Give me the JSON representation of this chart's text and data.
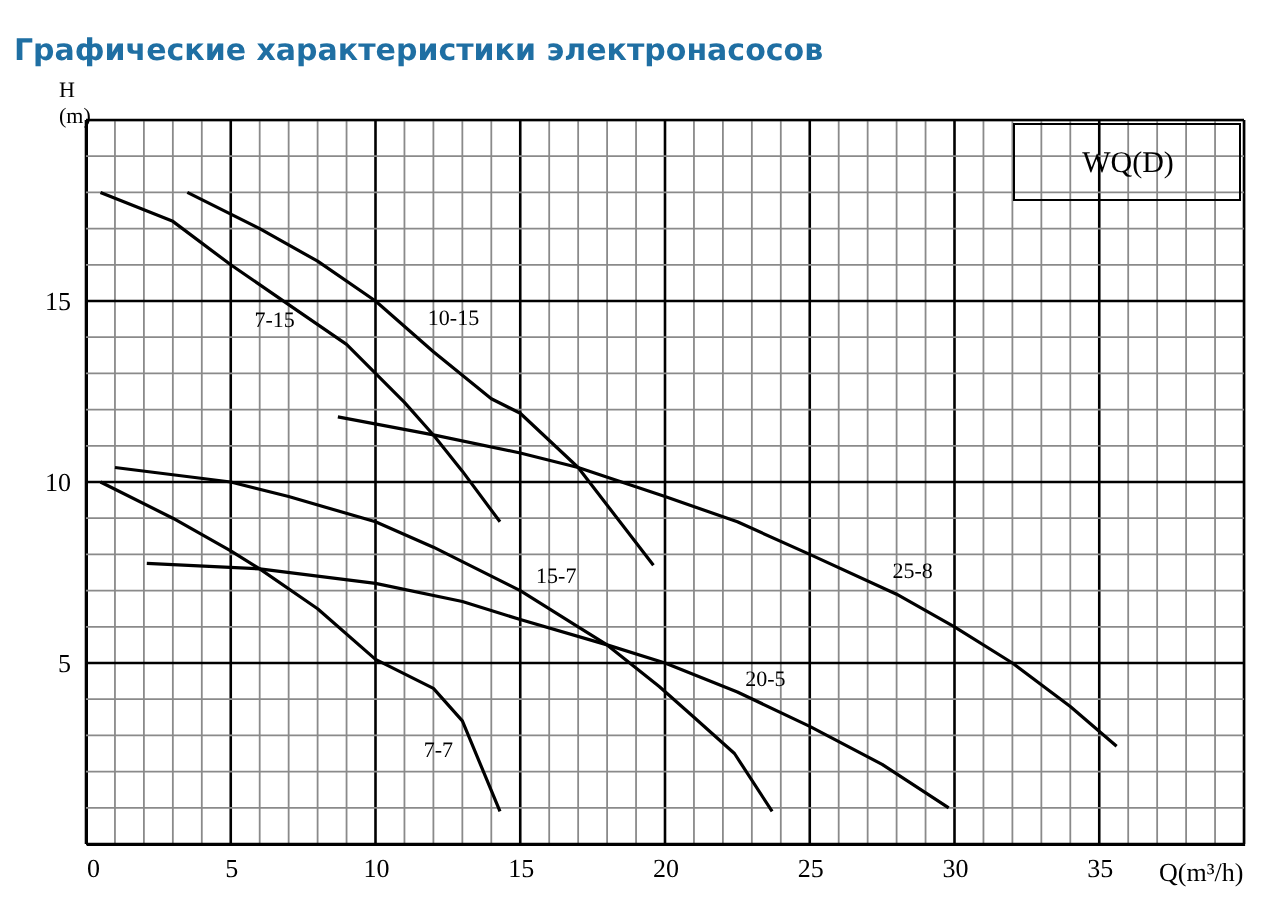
{
  "chart_data": {
    "type": "line",
    "title": "Графические характеристики электронасосов",
    "xlabel": "Q(m³/h)",
    "ylabel": "H\n(m)",
    "xlim": [
      0,
      40
    ],
    "ylim": [
      0,
      20
    ],
    "xticks": [
      0,
      {
        "value": 1,
        "label": null
      },
      {
        "value": 2,
        "label": null
      },
      {
        "value": 3,
        "label": null
      },
      {
        "value": 4,
        "label": null
      },
      5,
      {
        "value": 6,
        "label": null
      },
      {
        "value": 7,
        "label": null
      },
      {
        "value": 8,
        "label": null
      },
      {
        "value": 9,
        "label": null
      },
      10,
      {
        "value": 11,
        "label": null
      },
      {
        "value": 12,
        "label": null
      },
      {
        "value": 13,
        "label": null
      },
      {
        "value": 14,
        "label": null
      },
      15,
      {
        "value": 16,
        "label": null
      },
      {
        "value": 17,
        "label": null
      },
      {
        "value": 18,
        "label": null
      },
      {
        "value": 19,
        "label": null
      },
      20,
      {
        "value": 21,
        "label": null
      },
      {
        "value": 22,
        "label": null
      },
      {
        "value": 23,
        "label": null
      },
      {
        "value": 24,
        "label": null
      },
      25,
      {
        "value": 26,
        "label": null
      },
      {
        "value": 27,
        "label": null
      },
      {
        "value": 28,
        "label": null
      },
      {
        "value": 29,
        "label": null
      },
      30,
      {
        "value": 31,
        "label": null
      },
      {
        "value": 32,
        "label": null
      },
      {
        "value": 33,
        "label": null
      },
      {
        "value": 34,
        "label": null
      },
      35,
      {
        "value": 36,
        "label": null
      },
      {
        "value": 37,
        "label": null
      },
      {
        "value": 38,
        "label": null
      },
      {
        "value": 39,
        "label": null
      },
      {
        "value": 40,
        "label": null
      }
    ],
    "yticks": [
      {
        "value": 0,
        "label": null
      },
      {
        "value": 1,
        "label": null
      },
      {
        "value": 2,
        "label": null
      },
      {
        "value": 3,
        "label": null
      },
      {
        "value": 4,
        "label": null
      },
      5,
      {
        "value": 6,
        "label": null
      },
      {
        "value": 7,
        "label": null
      },
      {
        "value": 8,
        "label": null
      },
      {
        "value": 9,
        "label": null
      },
      10,
      {
        "value": 11,
        "label": null
      },
      {
        "value": 12,
        "label": null
      },
      {
        "value": 13,
        "label": null
      },
      {
        "value": 14,
        "label": null
      },
      15,
      {
        "value": 16,
        "label": null
      },
      {
        "value": 17,
        "label": null
      },
      {
        "value": 18,
        "label": null
      },
      {
        "value": 19,
        "label": null
      },
      {
        "value": 20,
        "label": null
      }
    ],
    "grid": true,
    "legend": false,
    "line_style": "solid",
    "series": [
      {
        "name": "7-15",
        "color": "#000000",
        "x": [
          0.5,
          3,
          5,
          7,
          9,
          10,
          11,
          12,
          13,
          14.3
        ],
        "values": [
          18,
          17.2,
          16,
          14.9,
          13.8,
          13,
          12.2,
          11.3,
          10.3,
          8.9
        ]
      },
      {
        "name": "10-15",
        "color": "#000000",
        "x": [
          3.5,
          6,
          8,
          10,
          12,
          14,
          15,
          17,
          19.6
        ],
        "values": [
          18,
          17,
          16.1,
          15,
          13.6,
          12.3,
          11.9,
          10.4,
          7.7
        ]
      },
      {
        "name": "25-8",
        "color": "#000000",
        "x": [
          8.7,
          12,
          15,
          17,
          20,
          22.5,
          25,
          28,
          30,
          32,
          34,
          35.6
        ],
        "values": [
          11.8,
          11.3,
          10.8,
          10.4,
          9.6,
          8.9,
          8,
          6.9,
          6,
          5,
          3.8,
          2.7
        ]
      },
      {
        "name": "15-7",
        "color": "#000000",
        "x": [
          1,
          3,
          5,
          7,
          10,
          12,
          15,
          17,
          18,
          19.8,
          21,
          22.4,
          23.7
        ],
        "values": [
          10.4,
          10.2,
          10,
          9.6,
          8.9,
          8.2,
          7,
          6,
          5.5,
          4.35,
          3.5,
          2.5,
          0.9
        ]
      },
      {
        "name": "20-5",
        "color": "#000000",
        "x": [
          2.1,
          6,
          10,
          13,
          15,
          18,
          20,
          22.5,
          25,
          27.5,
          29.8
        ],
        "values": [
          7.75,
          7.6,
          7.2,
          6.7,
          6.2,
          5.5,
          5,
          4.2,
          3.25,
          2.2,
          1
        ]
      },
      {
        "name": "7-7",
        "color": "#000000",
        "x": [
          0.5,
          3,
          5,
          6,
          8,
          10,
          12,
          13,
          14.3
        ],
        "values": [
          10,
          9,
          8.1,
          7.6,
          6.5,
          5.1,
          4.3,
          3.4,
          0.9
        ]
      }
    ],
    "annotations": [
      "WQ(D)"
    ]
  }
}
